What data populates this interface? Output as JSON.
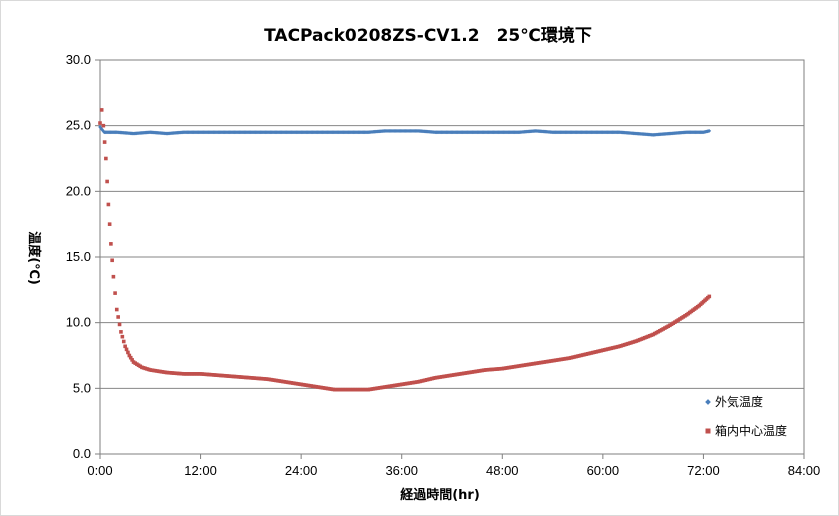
{
  "chart_data": {
    "type": "scatter",
    "title": "TACPack0208ZS-CV1.2　25℃環境下",
    "xlabel": "経過時間(hr)",
    "ylabel": "温度(℃)",
    "x_unit": "hours",
    "xlim": [
      0,
      84
    ],
    "ylim": [
      0,
      30
    ],
    "x_ticks": [
      0,
      12,
      24,
      36,
      48,
      60,
      72,
      84
    ],
    "x_tick_labels": [
      "0:00",
      "12:00",
      "24:00",
      "36:00",
      "48:00",
      "60:00",
      "72:00",
      "84:00"
    ],
    "y_ticks": [
      0,
      5,
      10,
      15,
      20,
      25,
      30
    ],
    "y_tick_labels": [
      "0.0",
      "5.0",
      "10.0",
      "15.0",
      "20.0",
      "25.0",
      "30.0"
    ],
    "grid": true,
    "legend_position": "bottom-right",
    "series": [
      {
        "name": "外気温度",
        "color": "#4A7EBB",
        "marker": "diamond",
        "points": [
          [
            0,
            24.9
          ],
          [
            0.5,
            24.5
          ],
          [
            2,
            24.5
          ],
          [
            4,
            24.4
          ],
          [
            6,
            24.5
          ],
          [
            8,
            24.4
          ],
          [
            10,
            24.5
          ],
          [
            12,
            24.5
          ],
          [
            14,
            24.5
          ],
          [
            16,
            24.5
          ],
          [
            18,
            24.5
          ],
          [
            20,
            24.5
          ],
          [
            22,
            24.5
          ],
          [
            24,
            24.5
          ],
          [
            26,
            24.5
          ],
          [
            28,
            24.5
          ],
          [
            30,
            24.5
          ],
          [
            32,
            24.5
          ],
          [
            34,
            24.6
          ],
          [
            36,
            24.6
          ],
          [
            38,
            24.6
          ],
          [
            40,
            24.5
          ],
          [
            42,
            24.5
          ],
          [
            44,
            24.5
          ],
          [
            46,
            24.5
          ],
          [
            48,
            24.5
          ],
          [
            50,
            24.5
          ],
          [
            52,
            24.6
          ],
          [
            54,
            24.5
          ],
          [
            56,
            24.5
          ],
          [
            58,
            24.5
          ],
          [
            60,
            24.5
          ],
          [
            62,
            24.5
          ],
          [
            64,
            24.4
          ],
          [
            66,
            24.3
          ],
          [
            68,
            24.4
          ],
          [
            70,
            24.5
          ],
          [
            72,
            24.5
          ],
          [
            72.7,
            24.6
          ]
        ]
      },
      {
        "name": "箱内中心温度",
        "color": "#C0504D",
        "marker": "square",
        "points": [
          [
            0,
            25.2
          ],
          [
            0.2,
            26.2
          ],
          [
            0.4,
            25.0
          ],
          [
            0.7,
            22.5
          ],
          [
            1.0,
            19.0
          ],
          [
            1.3,
            16.0
          ],
          [
            1.6,
            13.5
          ],
          [
            2.0,
            11.0
          ],
          [
            2.5,
            9.3
          ],
          [
            3.0,
            8.2
          ],
          [
            3.5,
            7.5
          ],
          [
            4.0,
            7.0
          ],
          [
            5.0,
            6.6
          ],
          [
            6.0,
            6.4
          ],
          [
            8.0,
            6.2
          ],
          [
            10.0,
            6.1
          ],
          [
            12.0,
            6.1
          ],
          [
            14.0,
            6.0
          ],
          [
            16.0,
            5.9
          ],
          [
            18.0,
            5.8
          ],
          [
            20.0,
            5.7
          ],
          [
            22.0,
            5.5
          ],
          [
            24.0,
            5.3
          ],
          [
            26.0,
            5.1
          ],
          [
            28.0,
            4.9
          ],
          [
            30.0,
            4.9
          ],
          [
            32.0,
            4.9
          ],
          [
            34.0,
            5.1
          ],
          [
            36.0,
            5.3
          ],
          [
            38.0,
            5.5
          ],
          [
            40.0,
            5.8
          ],
          [
            42.0,
            6.0
          ],
          [
            44.0,
            6.2
          ],
          [
            46.0,
            6.4
          ],
          [
            48.0,
            6.5
          ],
          [
            50.0,
            6.7
          ],
          [
            52.0,
            6.9
          ],
          [
            54.0,
            7.1
          ],
          [
            56.0,
            7.3
          ],
          [
            58.0,
            7.6
          ],
          [
            60.0,
            7.9
          ],
          [
            62.0,
            8.2
          ],
          [
            64.0,
            8.6
          ],
          [
            66.0,
            9.1
          ],
          [
            68.0,
            9.8
          ],
          [
            70.0,
            10.6
          ],
          [
            71.5,
            11.3
          ],
          [
            72.7,
            12.0
          ]
        ]
      }
    ]
  }
}
